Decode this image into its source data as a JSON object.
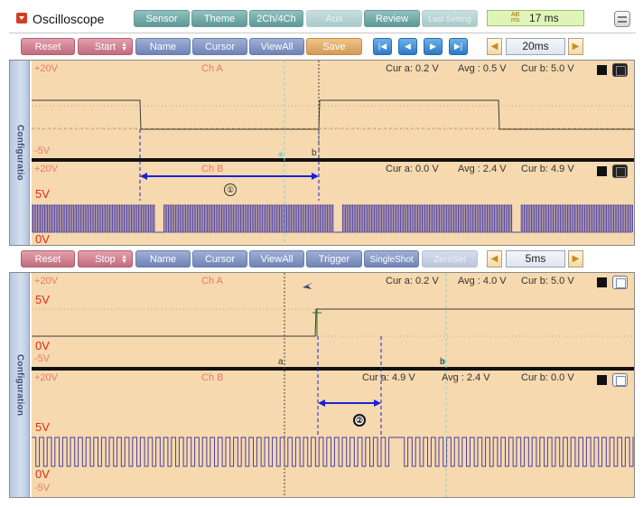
{
  "app": {
    "title": "Oscilloscope",
    "top_buttons": [
      "Sensor",
      "Theme",
      "2Ch/4Ch",
      "Aux",
      "Review",
      "Last Setting"
    ],
    "time_display": "17 ms",
    "time_display_icon": "AB ms"
  },
  "panel1": {
    "controls": {
      "reset": "Reset",
      "start": "Start",
      "name": "Name",
      "cursor": "Cursor",
      "viewall": "ViewAll",
      "save": "Save",
      "nav": [
        "|◀",
        "◀",
        "▶",
        "▶|"
      ],
      "timebase": "20ms"
    },
    "side_label": "Configuratio",
    "chA": {
      "top": "+20V",
      "name": "Ch A",
      "bottom": "-5V",
      "cur_a": "Cur a: 0.2 V",
      "avg": "Avg  : 0.5 V",
      "cur_b": "Cur b: 5.0 V"
    },
    "chB": {
      "top": "+20V",
      "name": "Ch B",
      "scale_high": "5V",
      "scale_low": "0V",
      "cur_a": "Cur a: 0.0 V",
      "avg": "Avg  : 2.4 V",
      "cur_b": "Cur b: 4.9 V"
    },
    "marker_a": "a",
    "marker_b": "b",
    "annotation": "①"
  },
  "panel2": {
    "controls": {
      "reset": "Reset",
      "stop": "Stop",
      "name": "Name",
      "cursor": "Cursor",
      "viewall": "ViewAll",
      "trigger": "Trigger",
      "singleshot": "SingleShot",
      "zeroset": "ZeroSet",
      "timebase": "5ms"
    },
    "side_label": "Configuration",
    "chA": {
      "top": "+20V",
      "name": "Ch A",
      "scale_high": "5V",
      "scale_low": "0V",
      "bottom": "-5V",
      "cur_a": "Cur a: 0.2 V",
      "avg": "Avg  : 4.0 V",
      "cur_b": "Cur b: 5.0 V"
    },
    "chB": {
      "top": "+20V",
      "name": "Ch B",
      "scale_high": "5V",
      "scale_low": "0V",
      "bottom": "-5V",
      "cur_a": "Cur a: 4.9 V",
      "avg": "Avg  : 2.4 V",
      "cur_b": "Cur b: 0.0 V"
    },
    "marker_a": "a",
    "marker_b": "b",
    "annotation": "②"
  },
  "colors": {
    "plot_bg": "#f6d9ae",
    "trace_dark": "#3a3a3a",
    "trace_purple": "#4b3fa0",
    "cursor_blue": "#1a22d8",
    "cursor_teal": "#7fd6c8",
    "scale_red": "#e02c18"
  }
}
